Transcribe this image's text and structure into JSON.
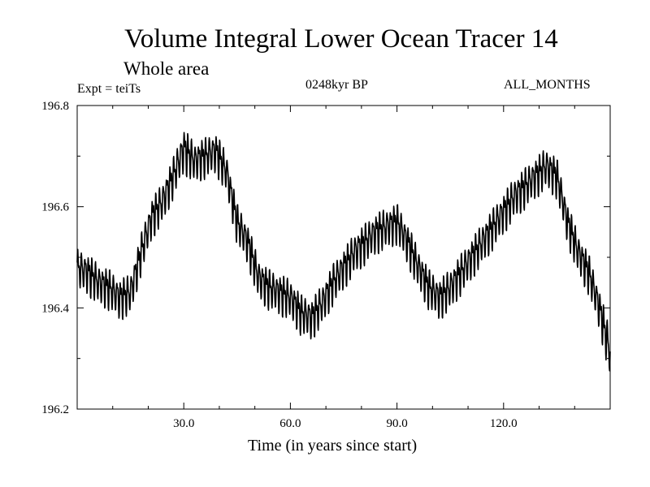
{
  "chart_data": {
    "type": "line",
    "title": "Volume Integral Lower Ocean Tracer 14",
    "subtitle": "Whole area",
    "experiment": "Expt = teiTs",
    "period": "0248kyr BP",
    "months": "ALL_MONTHS",
    "xlabel": "Time (in years since start)",
    "ylabel": "",
    "xlim": [
      0,
      150
    ],
    "ylim": [
      196.2,
      196.8
    ],
    "xticks": [
      30,
      60,
      90,
      120
    ],
    "xtick_labels": [
      "30.0",
      "60.0",
      "90.0",
      "120.0"
    ],
    "yticks": [
      196.2,
      196.4,
      196.6,
      196.8
    ],
    "ytick_labels": [
      "196.2",
      "196.4",
      "196.6",
      "196.8"
    ],
    "grid": false,
    "series": [
      {
        "name": "Lower Ocean Tracer 14",
        "sampling": "monthly, annual-cycle range shown as envelope",
        "x_years": [
          0,
          3,
          6,
          9,
          12,
          15,
          18,
          21,
          24,
          27,
          30,
          33,
          36,
          39,
          42,
          45,
          48,
          51,
          54,
          57,
          60,
          63,
          66,
          69,
          72,
          75,
          78,
          81,
          84,
          87,
          90,
          93,
          96,
          99,
          102,
          105,
          108,
          111,
          114,
          117,
          120,
          123,
          126,
          129,
          132,
          135,
          138,
          141,
          144,
          147,
          150
        ],
        "y_high": [
          196.53,
          196.52,
          196.5,
          196.49,
          196.47,
          196.48,
          196.56,
          196.63,
          196.66,
          196.71,
          196.77,
          196.74,
          196.75,
          196.76,
          196.72,
          196.62,
          196.58,
          196.51,
          196.49,
          196.48,
          196.47,
          196.44,
          196.43,
          196.46,
          196.5,
          196.53,
          196.56,
          196.58,
          196.6,
          196.61,
          196.62,
          196.58,
          196.53,
          196.49,
          196.47,
          196.49,
          196.52,
          196.55,
          196.58,
          196.61,
          196.64,
          196.67,
          196.69,
          196.71,
          196.73,
          196.71,
          196.62,
          196.56,
          196.52,
          196.45,
          196.37
        ],
        "y_low": [
          196.43,
          196.42,
          196.4,
          196.39,
          196.37,
          196.38,
          196.46,
          196.53,
          196.56,
          196.61,
          196.66,
          196.64,
          196.65,
          196.66,
          196.62,
          196.52,
          196.48,
          196.41,
          196.39,
          196.38,
          196.37,
          196.34,
          196.33,
          196.36,
          196.4,
          196.43,
          196.46,
          196.48,
          196.5,
          196.51,
          196.52,
          196.48,
          196.43,
          196.39,
          196.37,
          196.39,
          196.42,
          196.45,
          196.48,
          196.51,
          196.54,
          196.57,
          196.59,
          196.61,
          196.63,
          196.61,
          196.52,
          196.46,
          196.42,
          196.35,
          196.25
        ]
      }
    ]
  }
}
